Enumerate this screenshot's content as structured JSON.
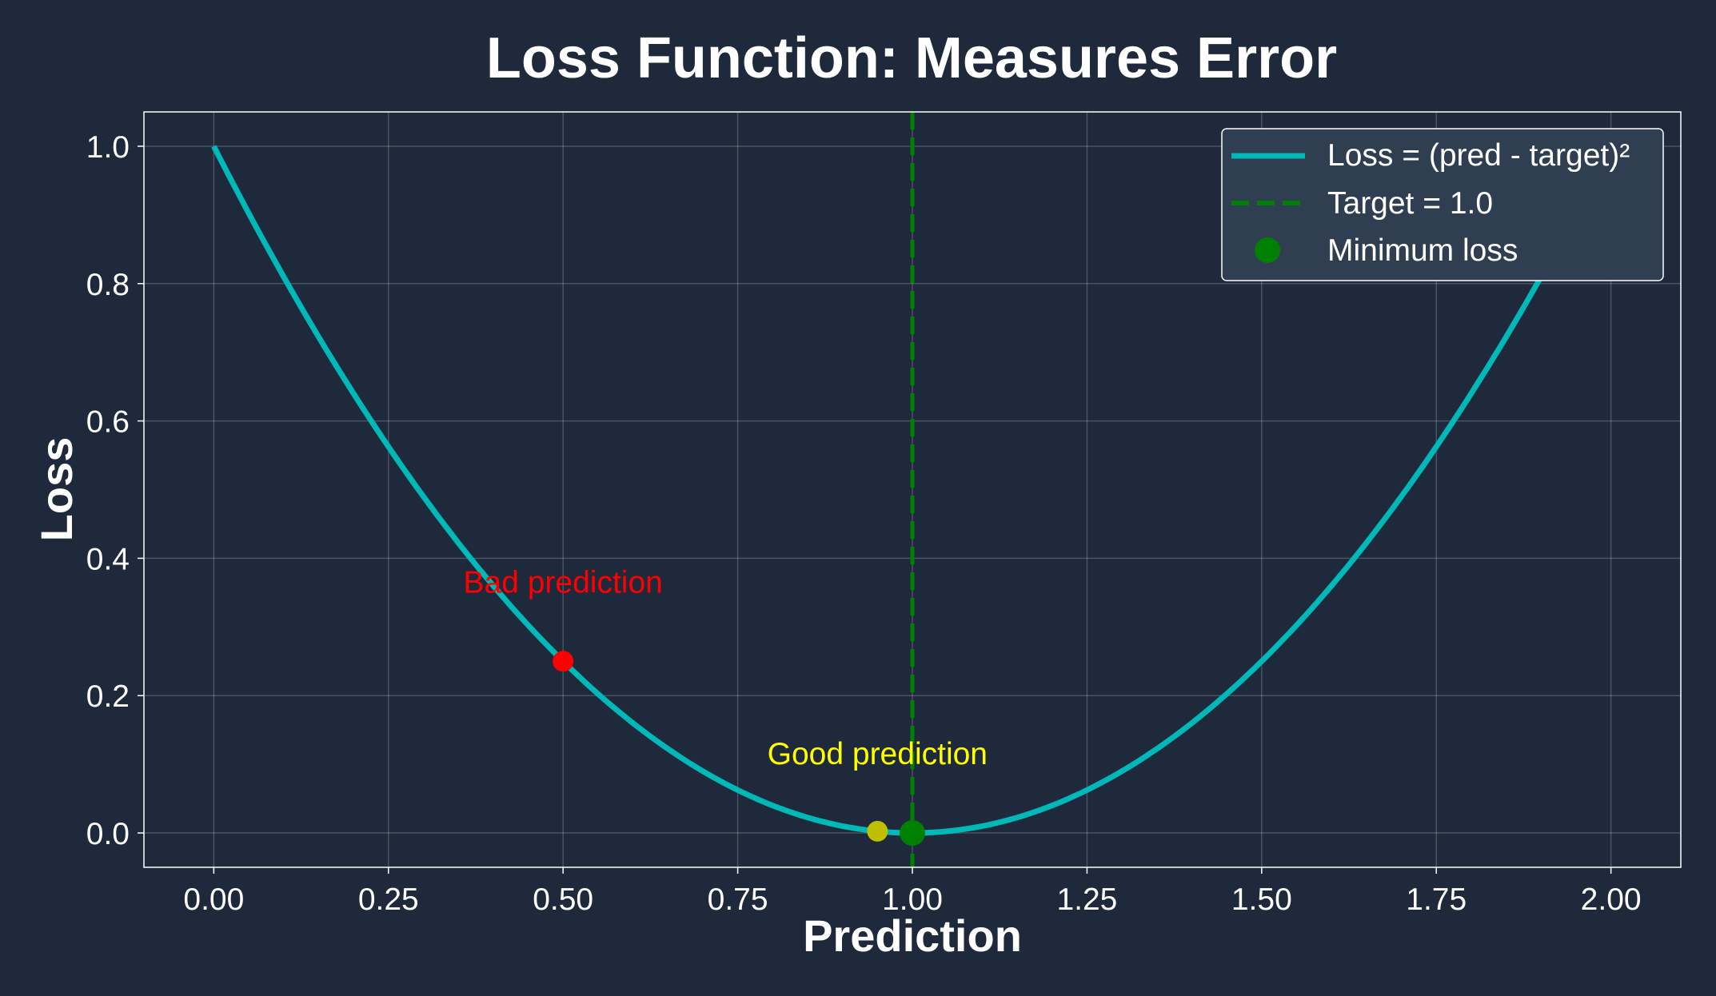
{
  "chart_data": {
    "type": "line",
    "title": "Loss Function: Measures Error",
    "xlabel": "Prediction",
    "ylabel": "Loss",
    "xlim": [
      -0.1,
      2.1
    ],
    "ylim": [
      -0.05,
      1.05
    ],
    "x_ticks": [
      0.0,
      0.25,
      0.5,
      0.75,
      1.0,
      1.25,
      1.5,
      1.75,
      2.0
    ],
    "x_tick_labels": [
      "0.00",
      "0.25",
      "0.50",
      "0.75",
      "1.00",
      "1.25",
      "1.50",
      "1.75",
      "2.00"
    ],
    "y_ticks": [
      0.0,
      0.2,
      0.4,
      0.6,
      0.8,
      1.0
    ],
    "y_tick_labels": [
      "0.0",
      "0.2",
      "0.4",
      "0.6",
      "0.8",
      "1.0"
    ],
    "grid": true,
    "legend_position": "top-right",
    "target": 1.0,
    "series": [
      {
        "name": "Loss = (pred - target)²",
        "kind": "line",
        "color": "#00b8b8",
        "x": [
          0.0,
          0.1,
          0.2,
          0.3,
          0.4,
          0.5,
          0.6,
          0.7,
          0.8,
          0.9,
          1.0,
          1.1,
          1.2,
          1.3,
          1.4,
          1.5,
          1.6,
          1.7,
          1.8,
          1.9,
          2.0
        ],
        "y": [
          1.0,
          0.81,
          0.64,
          0.49,
          0.36,
          0.25,
          0.16,
          0.09,
          0.04,
          0.01,
          0.0,
          0.01,
          0.04,
          0.09,
          0.16,
          0.25,
          0.36,
          0.49,
          0.64,
          0.81,
          1.0
        ]
      },
      {
        "name": "Target = 1.0",
        "kind": "vline",
        "color": "#008000",
        "x": 1.0
      },
      {
        "name": "Minimum loss",
        "kind": "point",
        "color": "#008000",
        "x": 1.0,
        "y": 0.0
      }
    ],
    "highlight_points": [
      {
        "x": 0.5,
        "y": 0.25,
        "color": "#ff0000"
      },
      {
        "x": 0.95,
        "y": 0.0025,
        "color": "#bfbf00"
      }
    ],
    "annotations": [
      {
        "text": "Bad prediction",
        "x": 0.5,
        "y": 0.35,
        "color": "#ff0000"
      },
      {
        "text": "Good prediction",
        "x": 0.95,
        "y": 0.1,
        "color": "#ffff00"
      }
    ]
  }
}
